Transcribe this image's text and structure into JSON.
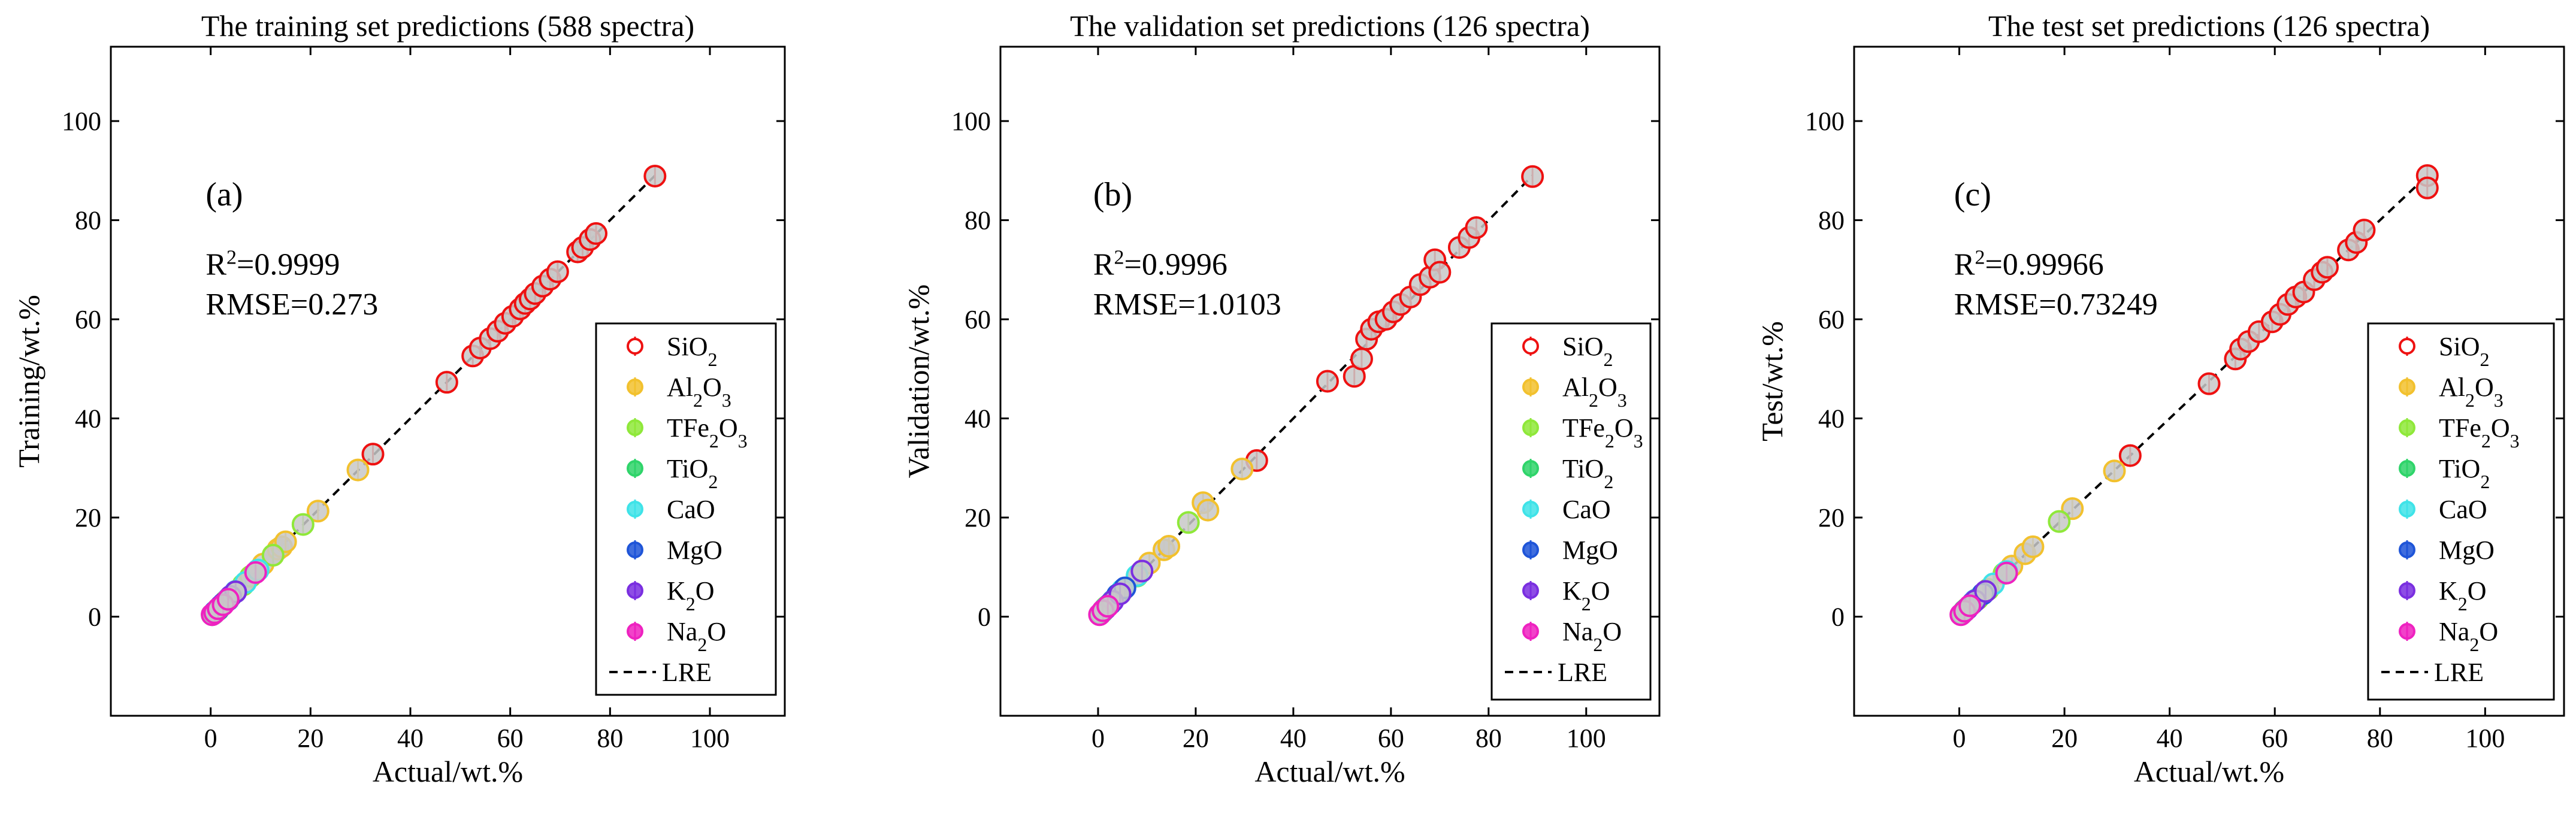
{
  "legend_series": [
    {
      "name": "SiO2",
      "base": "SiO",
      "sub": "2",
      "color": "#ee1111"
    },
    {
      "name": "Al2O3",
      "base": "Al",
      "sub": "2",
      "base2": "O",
      "sub2": "3",
      "color": "#f2c12e"
    },
    {
      "name": "TFe2O3",
      "base": "TFe",
      "sub": "2",
      "base2": "O",
      "sub2": "3",
      "color": "#8fe83a"
    },
    {
      "name": "TiO2",
      "base": "TiO",
      "sub": "2",
      "color": "#2fd46a"
    },
    {
      "name": "CaO",
      "base": "CaO",
      "color": "#3fe3e8"
    },
    {
      "name": "MgO",
      "base": "MgO",
      "color": "#1f55d8"
    },
    {
      "name": "K2O",
      "base": "K",
      "sub": "2",
      "base2": "O",
      "color": "#7a2fe0"
    },
    {
      "name": "Na2O",
      "base": "Na",
      "sub": "2",
      "base2": "O",
      "color": "#ee22c0"
    }
  ],
  "fit_line_label": "LRE",
  "chart_data": [
    {
      "type": "scatter",
      "panel_label": "(a)",
      "title": "The training set predictions (588 spectra)",
      "xlabel": "Actual/wt.%",
      "ylabel": "Training/wt.%",
      "r2_text": "=0.9999",
      "rmse_text": "RMSE=0.273",
      "xlim": [
        -20,
        115
      ],
      "ylim": [
        -20,
        115
      ],
      "xticks": [
        0,
        20,
        40,
        60,
        80,
        100
      ],
      "yticks": [
        0,
        20,
        40,
        60,
        80,
        100
      ],
      "fit_line": {
        "x": [
          0,
          89
        ],
        "y": [
          0,
          89
        ]
      },
      "series": [
        {
          "name": "SiO2",
          "x": [
            32.5,
            47.3,
            52.5,
            54.0,
            56.0,
            57.5,
            59.0,
            60.5,
            62.0,
            63.0,
            64.0,
            65.0,
            66.5,
            68.0,
            69.5,
            73.5,
            74.5,
            76.0,
            77.2,
            89.0
          ],
          "y": [
            32.8,
            47.3,
            52.6,
            54.2,
            56.1,
            57.6,
            59.2,
            60.6,
            62.1,
            63.2,
            64.1,
            65.2,
            66.7,
            68.1,
            69.6,
            73.6,
            74.5,
            76.1,
            77.3,
            88.9
          ]
        },
        {
          "name": "Al2O3",
          "x": [
            10.5,
            12.5,
            13.5,
            14.2,
            15.0,
            21.5,
            29.5
          ],
          "y": [
            10.6,
            12.4,
            13.6,
            14.1,
            15.1,
            21.3,
            29.6
          ]
        },
        {
          "name": "TFe2O3",
          "x": [
            1.5,
            3.0,
            5.0,
            6.5,
            8.0,
            12.5,
            18.5
          ],
          "y": [
            1.6,
            3.1,
            5.0,
            6.4,
            8.1,
            12.4,
            18.6
          ]
        },
        {
          "name": "TiO2",
          "x": [
            0.3,
            0.6,
            1.0,
            1.5,
            2.0
          ],
          "y": [
            0.4,
            0.6,
            1.1,
            1.4,
            2.1
          ]
        },
        {
          "name": "CaO",
          "x": [
            1.0,
            2.0,
            3.5,
            5.0,
            7.0,
            9.5
          ],
          "y": [
            1.1,
            2.0,
            3.6,
            5.1,
            6.9,
            9.4
          ]
        },
        {
          "name": "MgO",
          "x": [
            0.8,
            1.5,
            2.5,
            3.5,
            5.0
          ],
          "y": [
            0.9,
            1.5,
            2.6,
            3.4,
            5.0
          ]
        },
        {
          "name": "K2O",
          "x": [
            1.0,
            2.0,
            3.0,
            4.0,
            5.0
          ],
          "y": [
            1.0,
            2.1,
            3.0,
            4.1,
            5.0
          ]
        },
        {
          "name": "Na2O",
          "x": [
            0.3,
            0.8,
            1.5,
            2.5,
            3.5,
            9.0
          ],
          "y": [
            0.4,
            0.8,
            1.6,
            2.4,
            3.5,
            8.9
          ]
        }
      ]
    },
    {
      "type": "scatter",
      "panel_label": "(b)",
      "title": "The validation set predictions (126 spectra)",
      "xlabel": "Actual/wt.%",
      "ylabel": "Validation/wt.%",
      "r2_text": "=0.9996",
      "rmse_text": "RMSE=1.0103",
      "xlim": [
        -20,
        115
      ],
      "ylim": [
        -20,
        115
      ],
      "xticks": [
        0,
        20,
        40,
        60,
        80,
        100
      ],
      "yticks": [
        0,
        20,
        40,
        60,
        80,
        100
      ],
      "fit_line": {
        "x": [
          0,
          89
        ],
        "y": [
          0,
          89
        ]
      },
      "series": [
        {
          "name": "SiO2",
          "x": [
            32.5,
            47.0,
            52.5,
            54.0,
            55.0,
            56.0,
            57.5,
            59.0,
            60.5,
            62.0,
            64.0,
            66.0,
            68.0,
            69.0,
            70.0,
            74.0,
            76.0,
            77.5,
            89.0
          ],
          "y": [
            31.5,
            47.5,
            48.5,
            52.0,
            56.0,
            58.0,
            59.5,
            60.0,
            61.5,
            63.0,
            64.5,
            67.0,
            68.5,
            72.0,
            69.5,
            74.5,
            76.5,
            78.5,
            88.8
          ]
        },
        {
          "name": "Al2O3",
          "x": [
            10.5,
            13.5,
            14.5,
            21.5,
            22.5,
            29.5
          ],
          "y": [
            10.8,
            13.5,
            14.2,
            23.0,
            21.5,
            29.8
          ]
        },
        {
          "name": "TFe2O3",
          "x": [
            1.5,
            3.0,
            5.0,
            8.0,
            18.5
          ],
          "y": [
            1.8,
            3.2,
            5.3,
            8.2,
            19.0
          ]
        },
        {
          "name": "TiO2",
          "x": [
            0.5,
            1.0,
            2.0
          ],
          "y": [
            0.6,
            1.1,
            2.2
          ]
        },
        {
          "name": "CaO",
          "x": [
            1.5,
            3.0,
            5.0,
            8.0
          ],
          "y": [
            1.7,
            3.2,
            5.4,
            8.3
          ]
        },
        {
          "name": "MgO",
          "x": [
            1.0,
            2.5,
            4.0,
            5.5
          ],
          "y": [
            1.2,
            2.6,
            4.4,
            5.8
          ]
        },
        {
          "name": "K2O",
          "x": [
            1.5,
            3.0,
            4.5,
            9.0
          ],
          "y": [
            1.6,
            3.1,
            4.6,
            9.2
          ]
        },
        {
          "name": "Na2O",
          "x": [
            0.3,
            1.0,
            2.0
          ],
          "y": [
            0.4,
            1.2,
            2.1
          ]
        }
      ]
    },
    {
      "type": "scatter",
      "panel_label": "(c)",
      "title": "The test set predictions (126 spectra)",
      "xlabel": "Actual/wt.%",
      "ylabel": "Test/wt.%",
      "r2_text": "=0.99966",
      "rmse_text": "RMSE=0.73249",
      "xlim": [
        -20,
        115
      ],
      "ylim": [
        -20,
        115
      ],
      "xticks": [
        0,
        20,
        40,
        60,
        80,
        100
      ],
      "yticks": [
        0,
        20,
        40,
        60,
        80,
        100
      ],
      "fit_line": {
        "x": [
          0,
          89
        ],
        "y": [
          0,
          89
        ]
      },
      "series": [
        {
          "name": "SiO2",
          "x": [
            32.5,
            47.5,
            52.5,
            53.5,
            55.0,
            57.0,
            59.5,
            61.0,
            62.5,
            64.0,
            65.5,
            67.5,
            69.0,
            70.0,
            74.0,
            75.5,
            77.0,
            89.0,
            89.0
          ],
          "y": [
            32.5,
            47.0,
            52.0,
            54.0,
            55.5,
            57.5,
            59.5,
            61.0,
            63.0,
            64.5,
            65.5,
            68.0,
            69.5,
            70.5,
            74.0,
            75.5,
            78.0,
            89.0,
            86.5
          ]
        },
        {
          "name": "Al2O3",
          "x": [
            10.0,
            12.5,
            14.0,
            21.5,
            29.5
          ],
          "y": [
            10.2,
            12.7,
            14.1,
            21.8,
            29.4
          ]
        },
        {
          "name": "TFe2O3",
          "x": [
            1.5,
            3.5,
            5.5,
            8.5,
            19.0
          ],
          "y": [
            1.7,
            3.6,
            5.5,
            8.7,
            19.2
          ]
        },
        {
          "name": "TiO2",
          "x": [
            0.5,
            1.0
          ],
          "y": [
            0.6,
            1.2
          ]
        },
        {
          "name": "CaO",
          "x": [
            1.5,
            3.0,
            6.5,
            9.0
          ],
          "y": [
            1.6,
            3.3,
            6.6,
            9.1
          ]
        },
        {
          "name": "MgO",
          "x": [
            1.0,
            2.5,
            4.5
          ],
          "y": [
            1.1,
            2.7,
            4.6
          ]
        },
        {
          "name": "K2O",
          "x": [
            1.5,
            3.0,
            5.0
          ],
          "y": [
            1.6,
            3.2,
            5.1
          ]
        },
        {
          "name": "Na2O",
          "x": [
            0.3,
            1.0,
            2.0,
            9.0
          ],
          "y": [
            0.4,
            1.1,
            2.2,
            8.8
          ]
        }
      ]
    }
  ]
}
